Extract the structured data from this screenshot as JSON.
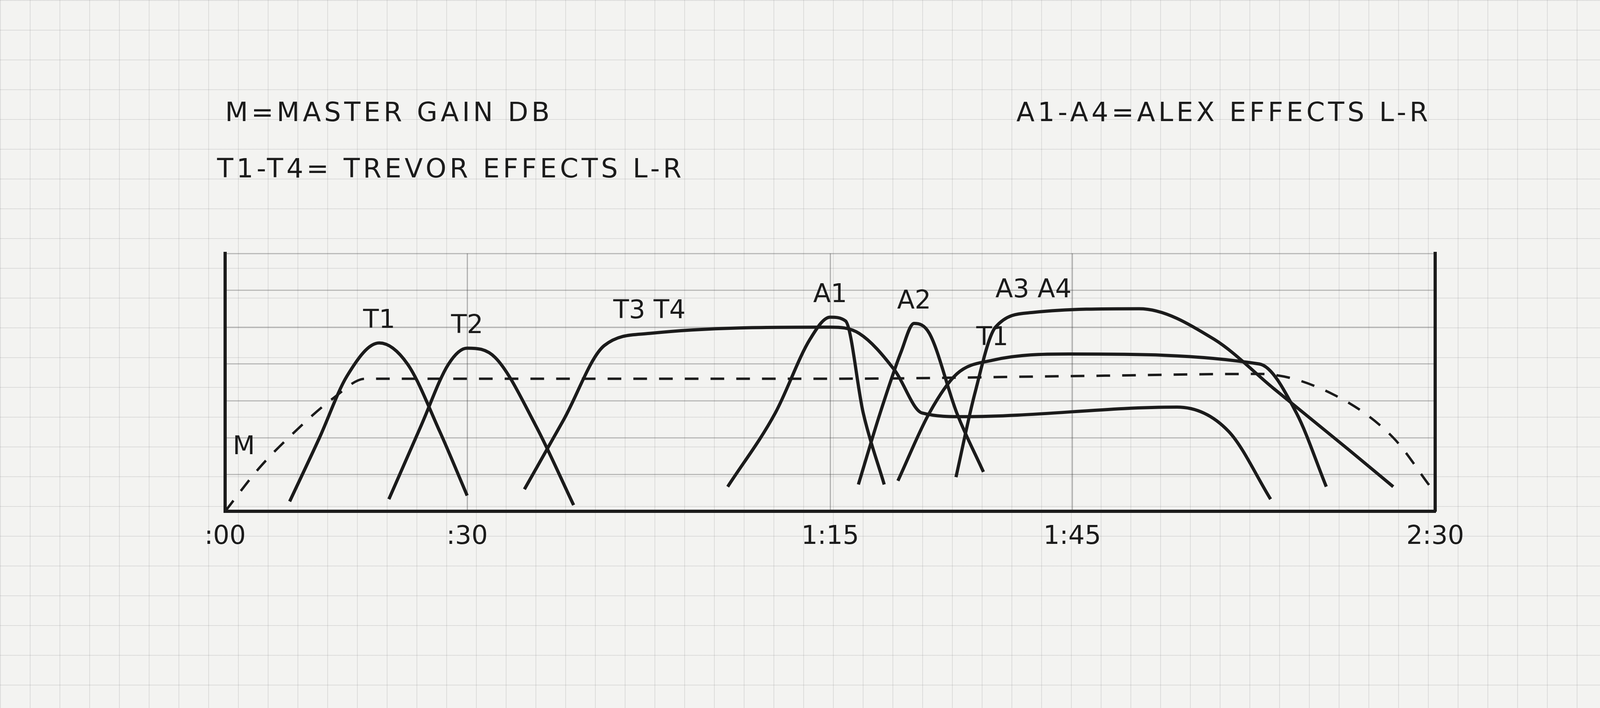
{
  "chart_data": {
    "type": "line",
    "annotations": [
      "M=MASTER GAIN DB",
      "A1-A4=ALEX EFFECTS L-R",
      "T1-T4= TREVOR EFFECTS L-R"
    ],
    "xlim": [
      0,
      150
    ],
    "xticks": [
      {
        "value": 0,
        "label": ":00"
      },
      {
        "value": 30,
        "label": ":30"
      },
      {
        "value": 75,
        "label": "1:15"
      },
      {
        "value": 105,
        "label": "1:45"
      },
      {
        "value": 150,
        "label": "2:30"
      }
    ],
    "ylim": [
      0,
      7
    ],
    "yticks": [
      0,
      1,
      2,
      3,
      4,
      5,
      6,
      7
    ],
    "grid": true,
    "tick_labels": "x",
    "series": [
      {
        "name": "M",
        "color": "#1b1b1b",
        "line_style": "dashed",
        "marker": "none",
        "x": [
          0,
          4.2,
          8.2,
          13.4,
          17.4,
          75,
          104.6,
          128.2,
          137.4,
          144.8,
          149.4
        ],
        "values": [
          0,
          1.17,
          2.07,
          3.07,
          3.6,
          3.6,
          3.67,
          3.73,
          3.17,
          2.0,
          0.67
        ]
      },
      {
        "name": "T1",
        "color": "#1b1b1b",
        "line_style": "solid",
        "marker": "none",
        "x": [
          8.0,
          11.7,
          15.1,
          19.1,
          22.6,
          26.6,
          30
        ],
        "values": [
          0.27,
          2.0,
          3.67,
          4.57,
          4.0,
          2.17,
          0.43
        ]
      },
      {
        "name": "T2",
        "color": "#1b1b1b",
        "line_style": "solid",
        "marker": "none",
        "x": [
          20.3,
          24.3,
          27.7,
          30,
          33.5,
          38.5,
          43.2
        ],
        "values": [
          0.33,
          2.33,
          4.0,
          4.43,
          4.17,
          2.33,
          0.17
        ]
      },
      {
        "name": "T3 T4",
        "color": "#1b1b1b",
        "line_style": "solid",
        "marker": "none",
        "x": [
          37.1,
          42.0,
          47.0,
          52.6,
          75,
          78.6,
          83.0,
          86.4,
          91.6,
          118.0,
          124.4,
          129.6
        ],
        "values": [
          0.6,
          2.5,
          4.5,
          4.83,
          5.0,
          4.83,
          3.83,
          2.67,
          2.57,
          2.83,
          2.17,
          0.33
        ]
      },
      {
        "name": "A1",
        "color": "#1b1b1b",
        "line_style": "solid",
        "marker": "none",
        "x": [
          62.3,
          68.2,
          72.5,
          75,
          76.9,
          79.1,
          81.7
        ],
        "values": [
          0.67,
          2.67,
          4.67,
          5.27,
          5.17,
          2.67,
          0.73
        ]
      },
      {
        "name": "A2",
        "color": "#1b1b1b",
        "line_style": "solid",
        "marker": "none",
        "x": [
          78.5,
          81.2,
          83.8,
          85.4,
          87.3,
          90.7,
          94.0
        ],
        "values": [
          0.73,
          2.67,
          4.33,
          5.1,
          4.83,
          2.67,
          1.07
        ]
      },
      {
        "name": "T1",
        "color": "#1b1b1b",
        "line_style": "solid",
        "marker": "none",
        "x": [
          83.4,
          87.3,
          90.7,
          95.1,
          104.6,
          128.2,
          132.8,
          136.5
        ],
        "values": [
          0.83,
          2.67,
          3.73,
          4.1,
          4.27,
          4.0,
          2.67,
          0.67
        ]
      },
      {
        "name": "A3 A4",
        "color": "#1b1b1b",
        "line_style": "solid",
        "marker": "none",
        "x": [
          90.6,
          92.9,
          95.5,
          100.2,
          113.3,
          122.6,
          130.0,
          139.3,
          144.8
        ],
        "values": [
          0.93,
          3.17,
          5.0,
          5.4,
          5.5,
          4.67,
          3.33,
          1.67,
          0.67
        ]
      }
    ]
  }
}
